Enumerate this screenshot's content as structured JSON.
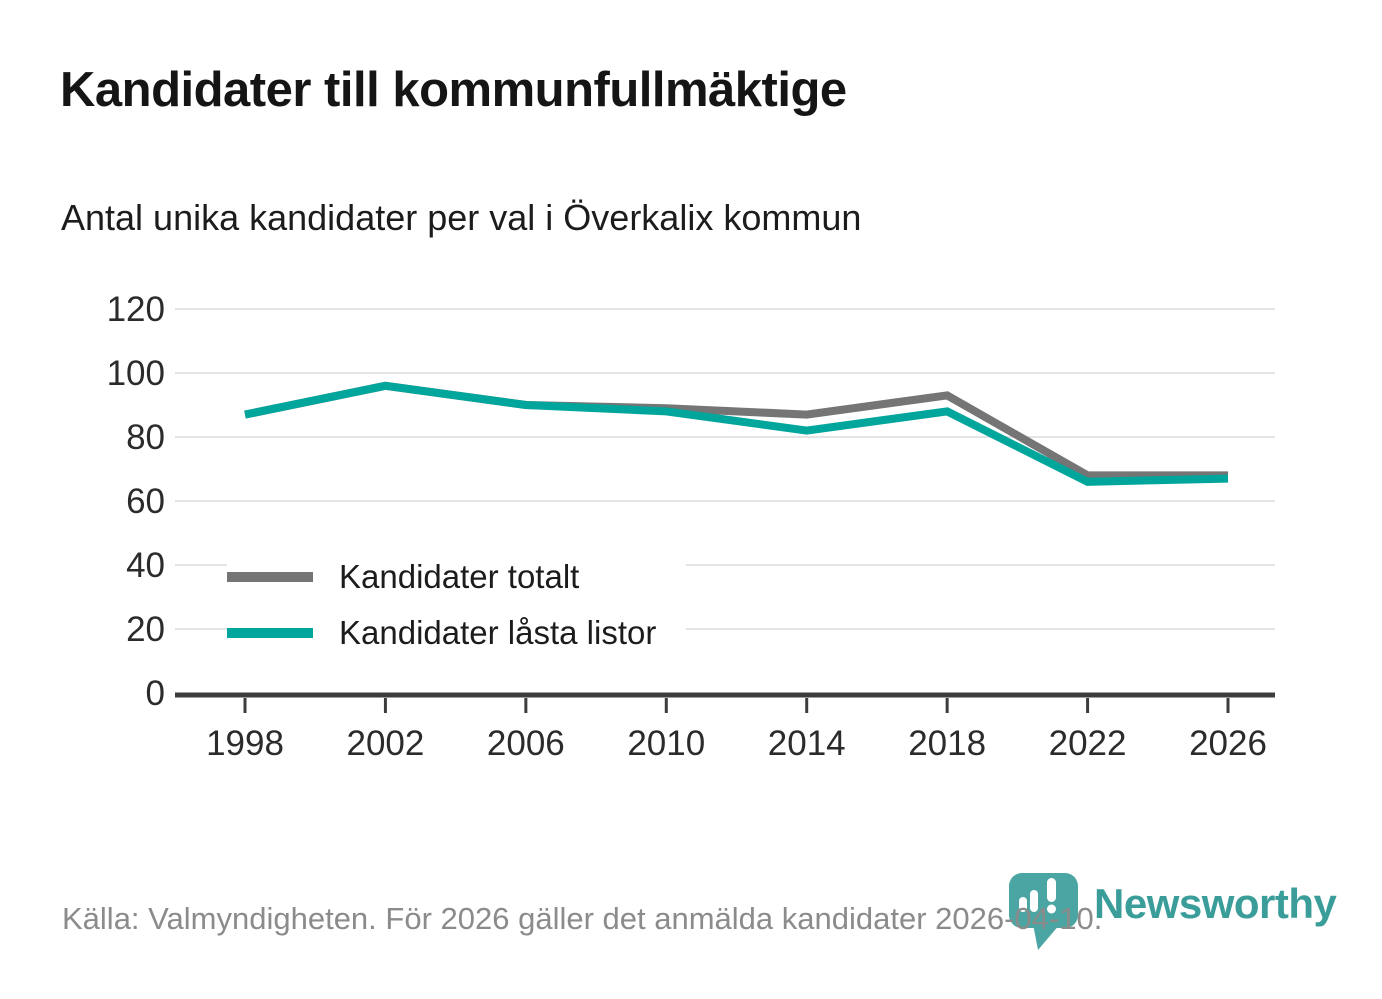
{
  "header": {
    "title": "Kandidater till kommunfullmäktige",
    "subtitle": "Antal unika kandidater per val i Överkalix kommun"
  },
  "chart_data": {
    "type": "line",
    "title": "Kandidater till kommunfullmäktige",
    "subtitle": "Antal unika kandidater per val i Överkalix kommun",
    "categories": [
      1998,
      2002,
      2006,
      2010,
      2014,
      2018,
      2022,
      2026
    ],
    "series": [
      {
        "name": "Kandidater totalt",
        "color": "#757575",
        "values": [
          87,
          96,
          90,
          89,
          87,
          93,
          68,
          68
        ]
      },
      {
        "name": "Kandidater låsta listor",
        "color": "#00a69b",
        "values": [
          87,
          96,
          90,
          88,
          82,
          88,
          66,
          67
        ]
      }
    ],
    "xlabel": "",
    "ylabel": "",
    "ylim": [
      0,
      120
    ],
    "yticks": [
      0,
      20,
      40,
      60,
      80,
      100,
      120
    ],
    "grid": true,
    "legend_position": "inside-middle-left"
  },
  "footer": {
    "source_text": "Källa: Valmyndigheten. För 2026 gäller det anmälda kandidater 2026-04-10."
  },
  "branding": {
    "logo_text": "Newsworthy",
    "logo_icon": "speech-bubble-bar-chart",
    "logo_text_color": "#3a9d99",
    "logo_bubble_color": "#4ba5a2"
  },
  "colors": {
    "grid": "#e4e4e4",
    "axis": "#3d3d3d",
    "text": "#2b2b2b",
    "muted_text": "#8b8b8b"
  }
}
